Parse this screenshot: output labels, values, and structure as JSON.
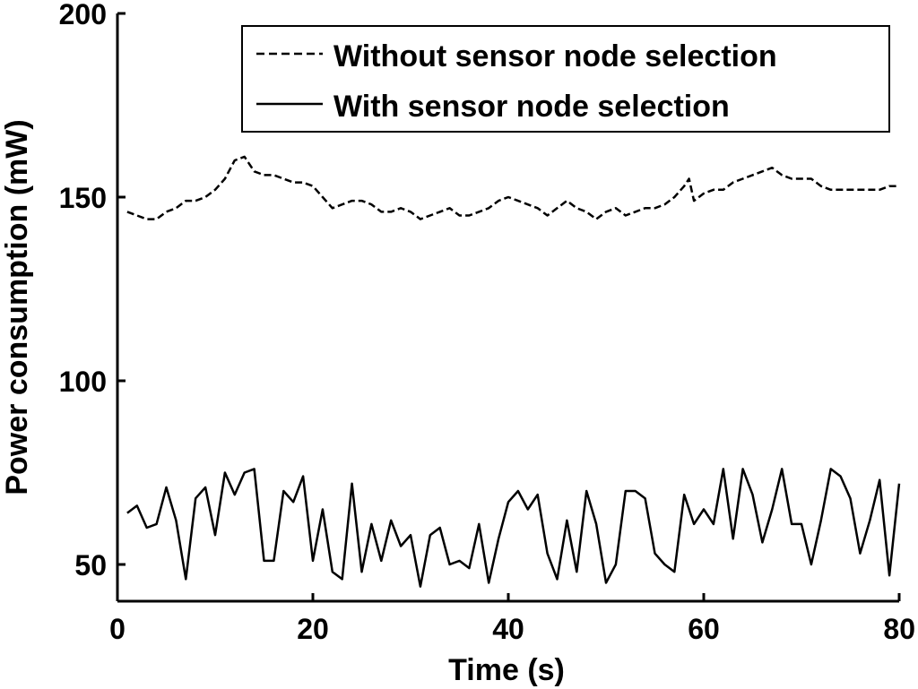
{
  "chart_data": {
    "type": "line",
    "title": "",
    "xlabel": "Time (s)",
    "ylabel": "Power consumption (mW)",
    "xlim": [
      0,
      80
    ],
    "ylim": [
      40,
      200
    ],
    "xticks": [
      0,
      20,
      40,
      60,
      80
    ],
    "yticks": [
      50,
      100,
      150,
      200
    ],
    "grid": false,
    "legend_position": "top-right",
    "series": [
      {
        "name": "Without sensor node selection",
        "line_style": "dashed",
        "color": "#000000",
        "x": [
          1,
          2,
          3,
          4,
          5,
          6,
          7,
          8,
          9,
          10,
          11,
          12,
          13,
          14,
          15,
          16,
          17,
          18,
          19,
          20,
          21,
          22,
          23,
          24,
          25,
          26,
          27,
          28,
          29,
          30,
          31,
          32,
          33,
          34,
          35,
          36,
          37,
          38,
          39,
          40,
          41,
          42,
          43,
          44,
          45,
          46,
          47,
          48,
          49,
          50,
          51,
          52,
          53,
          54,
          55,
          56,
          57,
          58,
          58.5,
          59,
          60,
          61,
          62,
          63,
          64,
          65,
          66,
          67,
          68,
          69,
          70,
          71,
          72,
          73,
          74,
          75,
          76,
          77,
          78,
          79,
          80
        ],
        "values": [
          146,
          145,
          144,
          144,
          146,
          147,
          149,
          149,
          150,
          152,
          155,
          160,
          161,
          157,
          156,
          156,
          155,
          154,
          154,
          153,
          150,
          147,
          148,
          149,
          149,
          148,
          146,
          146,
          147,
          146,
          144,
          145,
          146,
          147,
          145,
          145,
          146,
          147,
          149,
          150,
          149,
          148,
          147,
          145,
          147,
          149,
          147,
          146,
          144,
          146,
          147,
          145,
          146,
          147,
          147,
          148,
          150,
          153,
          155,
          149,
          151,
          152,
          152,
          154,
          155,
          156,
          157,
          158,
          156,
          155,
          155,
          155,
          153,
          152,
          152,
          152,
          152,
          152,
          152,
          153,
          153
        ]
      },
      {
        "name": "With sensor node selection",
        "line_style": "solid",
        "color": "#000000",
        "x": [
          1,
          2,
          3,
          4,
          5,
          6,
          7,
          8,
          9,
          10,
          11,
          12,
          13,
          14,
          15,
          16,
          17,
          18,
          19,
          20,
          21,
          22,
          23,
          24,
          25,
          26,
          27,
          28,
          29,
          30,
          31,
          32,
          33,
          34,
          35,
          36,
          37,
          38,
          39,
          40,
          41,
          42,
          43,
          44,
          45,
          46,
          47,
          48,
          49,
          50,
          51,
          52,
          53,
          54,
          55,
          56,
          57,
          58,
          59,
          60,
          61,
          62,
          63,
          64,
          65,
          66,
          67,
          68,
          69,
          70,
          71,
          72,
          73,
          74,
          75,
          76,
          77,
          78,
          79,
          80
        ],
        "values": [
          64,
          66,
          60,
          61,
          71,
          62,
          46,
          68,
          71,
          58,
          75,
          69,
          75,
          76,
          51,
          51,
          70,
          67,
          74,
          51,
          65,
          48,
          46,
          72,
          48,
          61,
          51,
          62,
          55,
          58,
          44,
          58,
          60,
          50,
          51,
          49,
          61,
          45,
          57,
          67,
          70,
          65,
          69,
          53,
          46,
          62,
          48,
          70,
          61,
          45,
          50,
          70,
          70,
          68,
          53,
          50,
          48,
          69,
          61,
          65,
          61,
          76,
          57,
          76,
          69,
          56,
          65,
          76,
          61,
          61,
          50,
          62,
          76,
          74,
          68,
          53,
          62,
          73,
          47,
          72
        ]
      }
    ]
  }
}
